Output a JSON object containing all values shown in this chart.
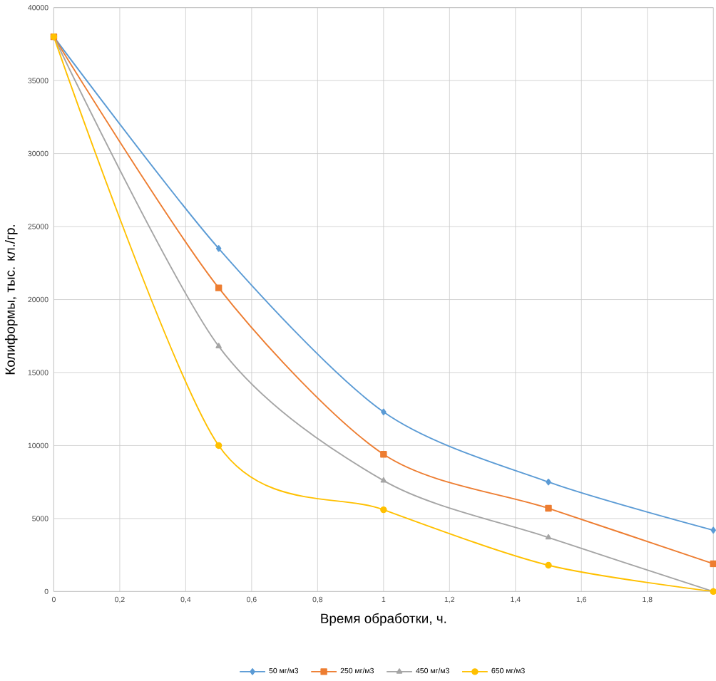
{
  "chart_data": {
    "type": "line",
    "xlabel": "Время обработки, ч.",
    "ylabel": "Колиформы, тыс. кл./гр.",
    "x": [
      0,
      0.5,
      1,
      1.5,
      2
    ],
    "series": [
      {
        "name": "50 мг/м3",
        "color": "#5b9bd5",
        "marker": "diamond",
        "values": [
          38000,
          23500,
          12300,
          7500,
          4200
        ]
      },
      {
        "name": "250 мг/м3",
        "color": "#ed7d31",
        "marker": "square",
        "values": [
          38000,
          20800,
          9400,
          5700,
          1900
        ]
      },
      {
        "name": "450 мг/м3",
        "color": "#a5a5a5",
        "marker": "triangle",
        "values": [
          38000,
          16800,
          7600,
          3700,
          0
        ]
      },
      {
        "name": "650 мг/м3",
        "color": "#ffc000",
        "marker": "circle",
        "values": [
          38000,
          10000,
          5600,
          1800,
          0
        ]
      }
    ],
    "xlim": [
      0,
      2
    ],
    "ylim": [
      0,
      40000
    ],
    "xticks": [
      0,
      {
        "value": 0.2,
        "label": "0,2"
      },
      {
        "value": 0.4,
        "label": "0,4"
      },
      {
        "value": 0.6,
        "label": "0,6"
      },
      {
        "value": 0.8,
        "label": "0,8"
      },
      1,
      {
        "value": 1.2,
        "label": "1,2"
      },
      {
        "value": 1.4,
        "label": "1,4"
      },
      {
        "value": 1.6,
        "label": "1,6"
      },
      {
        "value": 1.8,
        "label": "1,8"
      }
    ],
    "yticks": [
      0,
      5000,
      10000,
      15000,
      20000,
      25000,
      30000,
      35000,
      40000
    ],
    "grid": true,
    "legend": "bottom",
    "line_style": "solid"
  }
}
